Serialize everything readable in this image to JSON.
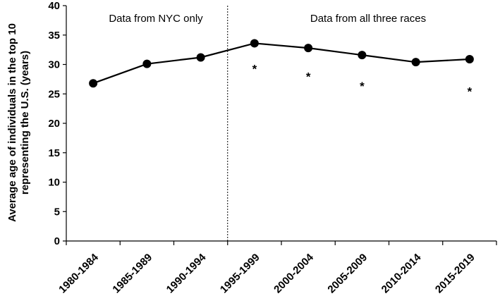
{
  "chart_data": {
    "type": "line",
    "title": "",
    "xlabel": "",
    "ylabel": "Average age of individuals in the top 10 representing the U.S. (years)",
    "ylabel_lines": [
      "Average age of individuals in the top 10",
      "representing the U.S. (years)"
    ],
    "categories": [
      "1980-1984",
      "1985-1989",
      "1990-1994",
      "1995-1999",
      "2000-2004",
      "2005-2009",
      "2010-2014",
      "2015-2019"
    ],
    "series": [
      {
        "values": [
          26.8,
          30.1,
          31.2,
          33.6,
          32.8,
          31.6,
          30.4,
          30.9
        ]
      }
    ],
    "ylim": [
      0,
      40
    ],
    "yticks": [
      0,
      5,
      10,
      15,
      20,
      25,
      30,
      35,
      40
    ],
    "grid": false,
    "regions": [
      {
        "label": "Data from NYC only",
        "categories": [
          "1980-1984",
          "1985-1989",
          "1990-1994"
        ]
      },
      {
        "label": "Data from all three races",
        "categories": [
          "1995-1999",
          "2000-2004",
          "2005-2009",
          "2010-2014",
          "2015-2019"
        ]
      }
    ],
    "annotations": [
      {
        "text": "*",
        "category": "1995-1999",
        "y": 29.5
      },
      {
        "text": "*",
        "category": "2000-2004",
        "y": 28.2
      },
      {
        "text": "*",
        "category": "2005-2009",
        "y": 26.6
      },
      {
        "text": "*",
        "category": "2015-2019",
        "y": 25.7
      }
    ],
    "colors": {
      "line": "#000000",
      "points": "#000000"
    }
  }
}
